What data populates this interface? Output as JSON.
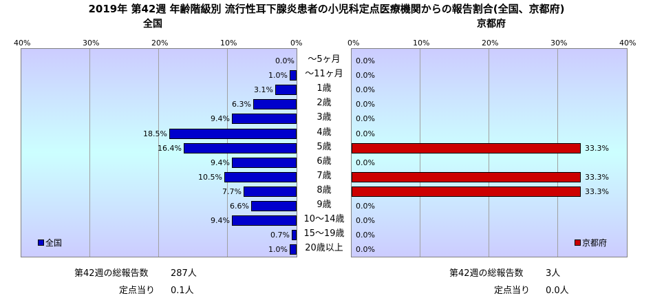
{
  "title": "2019年 第42週 年齢階級別 流行性耳下腺炎患者の小児科定点医療機関からの報告割合(全国、京都府)",
  "left_panel": {
    "subtitle": "全国",
    "ticks": [
      "40%",
      "30%",
      "20%",
      "10%",
      "0%"
    ],
    "legend": "全国",
    "footer": {
      "total_label": "第42週の総報告数",
      "total_value": "287人",
      "per_label": "定点当り",
      "per_value": "0.1人"
    }
  },
  "right_panel": {
    "subtitle": "京都府",
    "ticks": [
      "0%",
      "10%",
      "20%",
      "30%",
      "40%"
    ],
    "legend": "京都府",
    "footer": {
      "total_label": "第42週の総報告数",
      "total_value": "3人",
      "per_label": "定点当り",
      "per_value": "0.0人"
    }
  },
  "chart_data": {
    "type": "bar",
    "orientation": "horizontal",
    "categories": [
      "～5ヶ月",
      "～11ヶ月",
      "1歳",
      "2歳",
      "3歳",
      "4歳",
      "5歳",
      "6歳",
      "7歳",
      "8歳",
      "9歳",
      "10～14歳",
      "15～19歳",
      "20歳以上"
    ],
    "xlim": [
      0,
      40
    ],
    "series": [
      {
        "name": "全国",
        "color": "#0000cc",
        "values": [
          0.0,
          1.0,
          3.1,
          6.3,
          9.4,
          18.5,
          16.4,
          9.4,
          10.5,
          7.7,
          6.6,
          9.4,
          0.7,
          1.0
        ],
        "labels": [
          "0.0%",
          "1.0%",
          "3.1%",
          "6.3%",
          "9.4%",
          "18.5%",
          "16.4%",
          "9.4%",
          "10.5%",
          "7.7%",
          "6.6%",
          "9.4%",
          "0.7%",
          "1.0%"
        ]
      },
      {
        "name": "京都府",
        "color": "#cc0000",
        "values": [
          0.0,
          0.0,
          0.0,
          0.0,
          0.0,
          0.0,
          33.3,
          0.0,
          33.3,
          33.3,
          0.0,
          0.0,
          0.0,
          0.0
        ],
        "labels": [
          "0.0%",
          "0.0%",
          "0.0%",
          "0.0%",
          "0.0%",
          "0.0%",
          "33.3%",
          "0.0%",
          "33.3%",
          "33.3%",
          "0.0%",
          "0.0%",
          "0.0%",
          "0.0%"
        ]
      }
    ]
  }
}
